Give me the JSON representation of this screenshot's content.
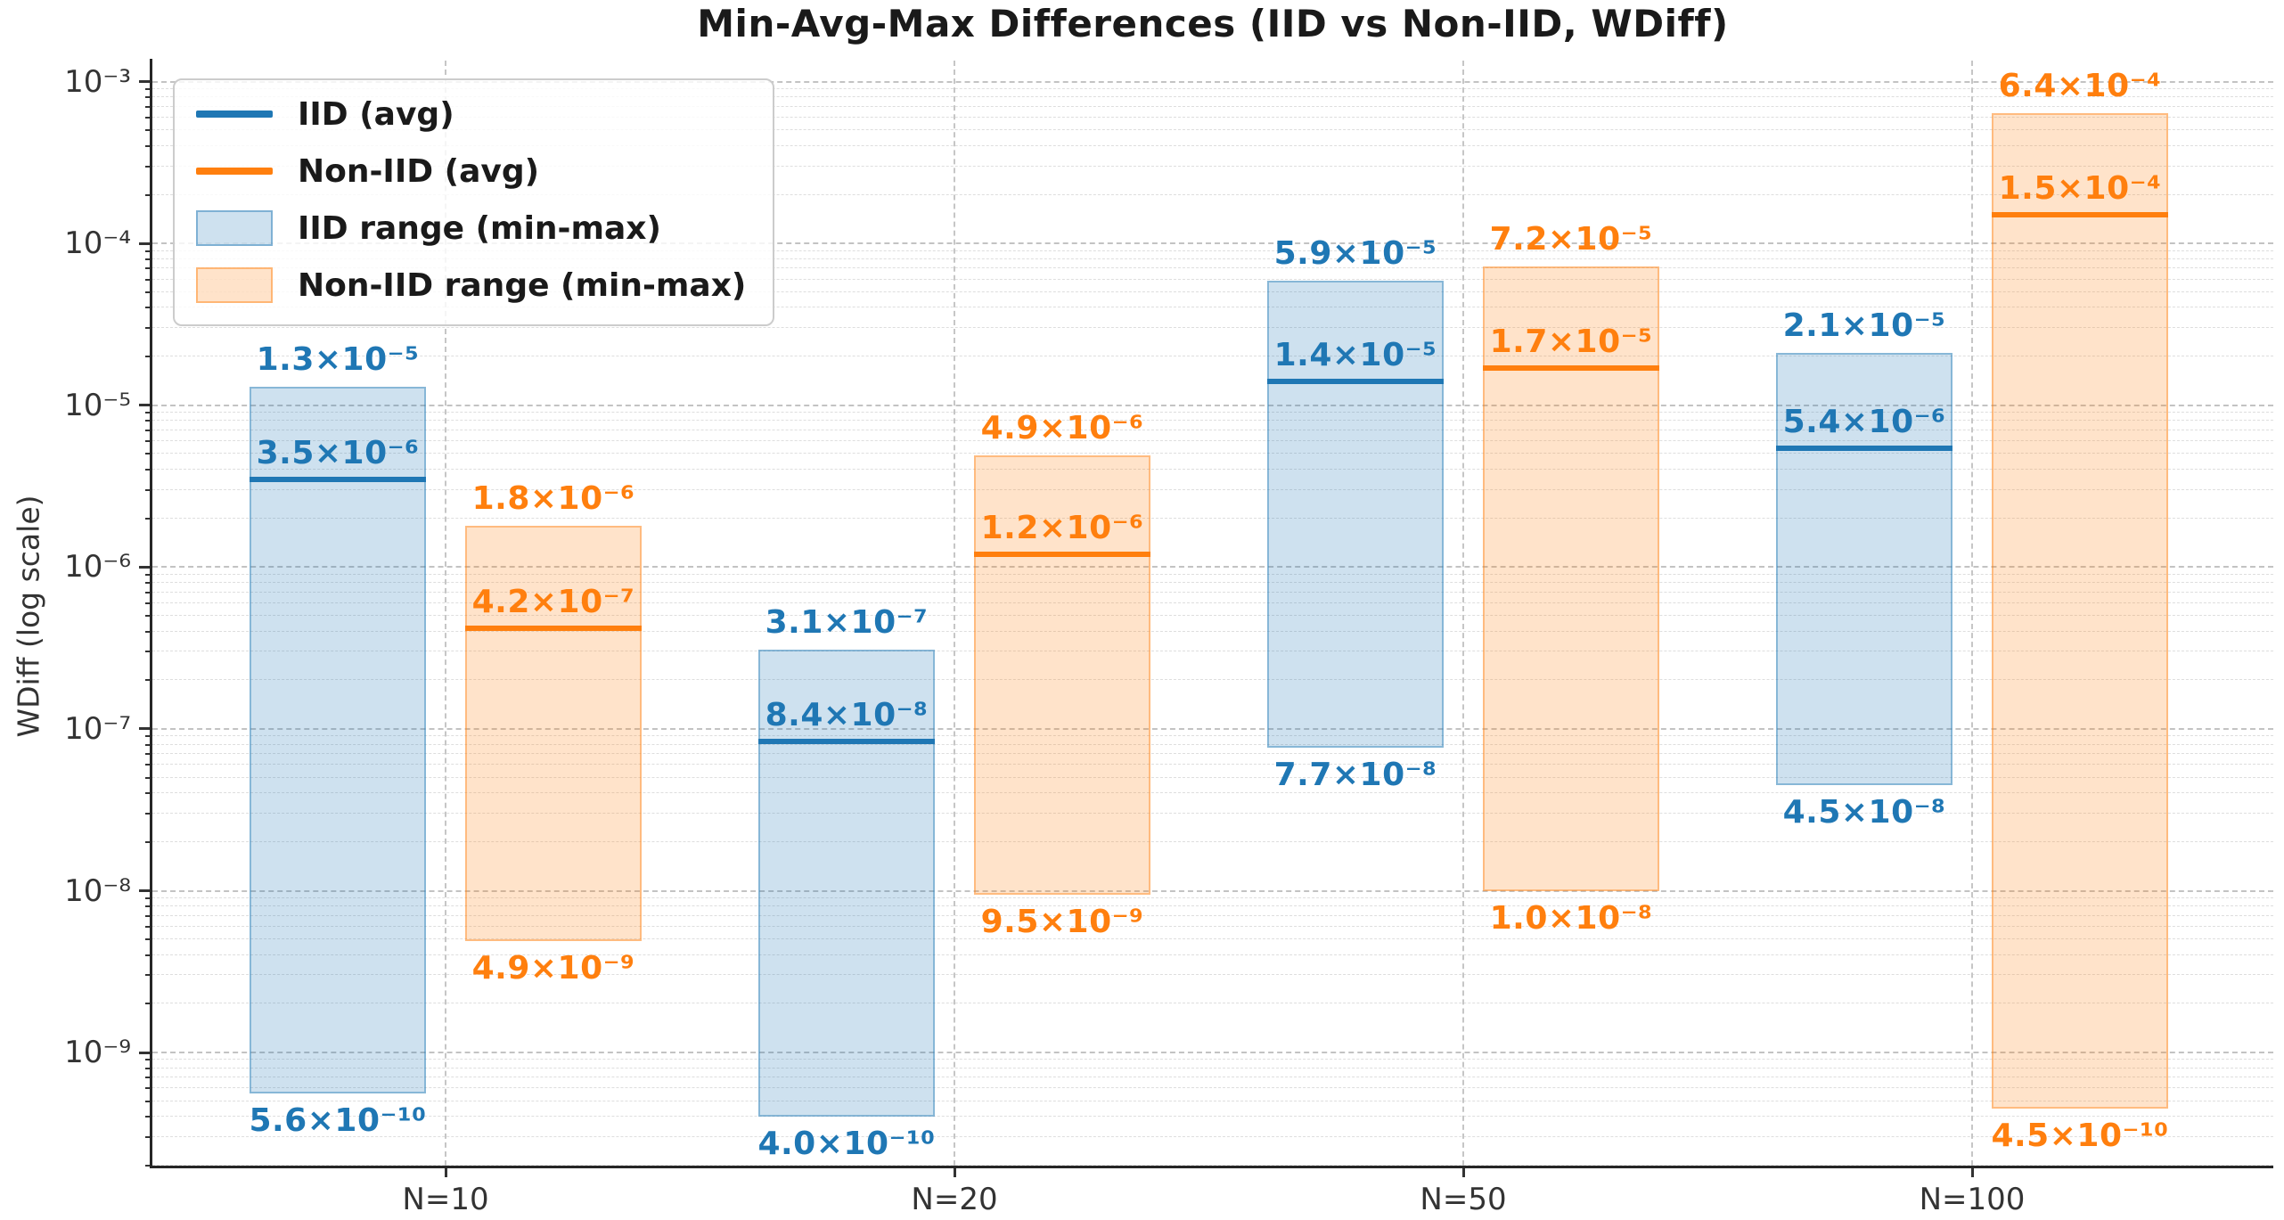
{
  "title": "Min-Avg-Max Differences (IID vs Non-IID, WDiff)",
  "ylabel": "WDiff (log scale)",
  "legend": {
    "items": [
      {
        "label": "IID (avg)",
        "type": "line",
        "color": "#1f77b4"
      },
      {
        "label": "Non-IID (avg)",
        "type": "line",
        "color": "#ff7f0e"
      },
      {
        "label": "IID range (min-max)",
        "type": "patch",
        "fill": "rgba(31,119,180,0.22)",
        "edge": "rgba(31,119,180,0.45)"
      },
      {
        "label": "Non-IID range (min-max)",
        "type": "patch",
        "fill": "rgba(255,127,14,0.22)",
        "edge": "rgba(255,127,14,0.45)"
      }
    ]
  },
  "y_axis": {
    "tick_labels": [
      "10⁻³",
      "10⁻⁴",
      "10⁻⁵",
      "10⁻⁶",
      "10⁻⁷",
      "10⁻⁸",
      "10⁻⁹"
    ],
    "tick_values": [
      0.001,
      0.0001,
      1e-05,
      1e-06,
      1e-07,
      1e-08,
      1e-09
    ]
  },
  "x_axis": {
    "categories": [
      "N=10",
      "N=20",
      "N=50",
      "N=100"
    ]
  },
  "chart_data": {
    "type": "range-bar",
    "yscale": "log",
    "ylim": [
      2e-10,
      0.00135
    ],
    "grid": true,
    "legend_position": "upper left",
    "categories": [
      "N=10",
      "N=20",
      "N=50",
      "N=100"
    ],
    "series": [
      {
        "name": "IID",
        "color": "#1f77b4",
        "fill": "rgba(31,119,180,0.22)",
        "edge": "rgba(31,119,180,0.4)",
        "points": [
          {
            "min": 5.6e-10,
            "avg": 3.5e-06,
            "max": 1.3e-05,
            "labels": {
              "min": "5.6×10⁻¹⁰",
              "avg": "3.5×10⁻⁶",
              "max": "1.3×10⁻⁵"
            }
          },
          {
            "min": 4e-10,
            "avg": 8.4e-08,
            "max": 3.1e-07,
            "labels": {
              "min": "4.0×10⁻¹⁰",
              "avg": "8.4×10⁻⁸",
              "max": "3.1×10⁻⁷"
            }
          },
          {
            "min": 7.7e-08,
            "avg": 1.4e-05,
            "max": 5.9e-05,
            "labels": {
              "min": "7.7×10⁻⁸",
              "avg": "1.4×10⁻⁵",
              "max": "5.9×10⁻⁵"
            }
          },
          {
            "min": 4.5e-08,
            "avg": 5.4e-06,
            "max": 2.1e-05,
            "labels": {
              "min": "4.5×10⁻⁸",
              "avg": "5.4×10⁻⁶",
              "max": "2.1×10⁻⁵"
            }
          }
        ]
      },
      {
        "name": "Non-IID",
        "color": "#ff7f0e",
        "fill": "rgba(255,127,14,0.22)",
        "edge": "rgba(255,127,14,0.4)",
        "points": [
          {
            "min": 4.9e-09,
            "avg": 4.2e-07,
            "max": 1.8e-06,
            "labels": {
              "min": "4.9×10⁻⁹",
              "avg": "4.2×10⁻⁷",
              "max": "1.8×10⁻⁶"
            }
          },
          {
            "min": 9.5e-09,
            "avg": 1.2e-06,
            "max": 4.9e-06,
            "labels": {
              "min": "9.5×10⁻⁹",
              "avg": "1.2×10⁻⁶",
              "max": "4.9×10⁻⁶"
            }
          },
          {
            "min": 1e-08,
            "avg": 1.7e-05,
            "max": 7.2e-05,
            "labels": {
              "min": "1.0×10⁻⁸",
              "avg": "1.7×10⁻⁵",
              "max": "7.2×10⁻⁵"
            }
          },
          {
            "min": 4.5e-10,
            "avg": 0.00015,
            "max": 0.00064,
            "labels": {
              "min": "4.5×10⁻¹⁰",
              "avg": "1.5×10⁻⁴",
              "max": "6.4×10⁻⁴"
            }
          }
        ]
      }
    ]
  }
}
